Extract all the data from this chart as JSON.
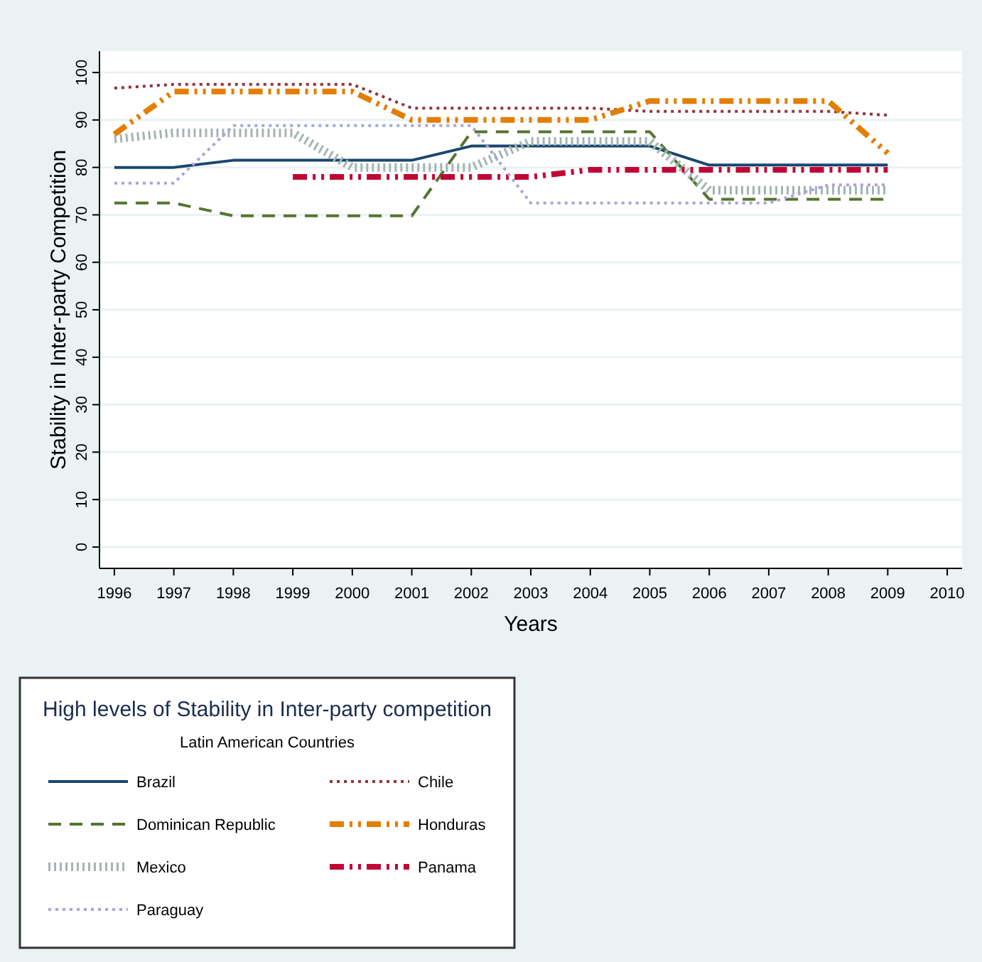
{
  "chart_data": {
    "type": "line",
    "xlabel": "Years",
    "ylabel": "Stability in Inter-party Competition",
    "legend_title": "High levels of Stability in Inter-party competition",
    "subtitle": "Latin American Countries",
    "legend": "bottom left",
    "grid": "y",
    "x": [
      1996,
      1997,
      1998,
      1999,
      2000,
      2001,
      2002,
      2003,
      2004,
      2005,
      2006,
      2007,
      2008,
      2009
    ],
    "xlim": [
      1995.75,
      2010.25
    ],
    "xticks": [
      1996,
      1997,
      1998,
      1999,
      2000,
      2001,
      2002,
      2003,
      2004,
      2005,
      2006,
      2007,
      2008,
      2009,
      2010
    ],
    "ylim": [
      -4.5,
      104.5
    ],
    "yticks": [
      0,
      10,
      20,
      30,
      40,
      50,
      60,
      70,
      80,
      90,
      100
    ],
    "series": [
      {
        "name": "Brazil",
        "color": "#1a476f",
        "line_style": "solid",
        "values": [
          80,
          80,
          81.5,
          81.5,
          81.5,
          81.5,
          84.5,
          84.5,
          84.5,
          84.5,
          80.5,
          80.5,
          80.5,
          80.5
        ]
      },
      {
        "name": "Chile",
        "color": "#90353b",
        "line_style": "dotted",
        "values": [
          96.7,
          97.5,
          97.5,
          97.5,
          97.5,
          92.5,
          92.5,
          92.5,
          92.5,
          91.8,
          91.8,
          91.8,
          91.8,
          91
        ]
      },
      {
        "name": "Dominican Republic",
        "color": "#55752f",
        "line_style": "dashed",
        "values": [
          72.5,
          72.5,
          69.8,
          69.8,
          69.8,
          69.8,
          87.5,
          87.5,
          87.5,
          87.5,
          73.3,
          73.3,
          73.3,
          73.3
        ]
      },
      {
        "name": "Honduras",
        "color": "#e37e00",
        "line_style": "dashdot",
        "values": [
          87,
          96,
          96,
          96,
          96,
          90,
          90,
          90,
          90,
          94,
          94,
          94,
          94,
          83
        ]
      },
      {
        "name": "Mexico",
        "color": "#a3b5b3",
        "line_style": "hatched",
        "values": [
          86,
          87.3,
          87.3,
          87.3,
          80,
          80,
          80,
          85.5,
          85.5,
          85.5,
          75.2,
          75.2,
          75.2,
          75.2
        ]
      },
      {
        "name": "Panama",
        "color": "#c10534",
        "line_style": "dashdot",
        "values": [
          null,
          null,
          null,
          78,
          78,
          78,
          78,
          78,
          79.5,
          79.5,
          79.5,
          79.5,
          79.5,
          79.5
        ]
      },
      {
        "name": "Paraguay",
        "color": "#a9a3dc",
        "line_style": "dotted",
        "values": [
          76.7,
          76.7,
          88.8,
          88.8,
          88.8,
          88.8,
          88.8,
          72.5,
          72.5,
          72.5,
          72.5,
          72.5,
          76.3,
          76.3
        ]
      }
    ]
  }
}
